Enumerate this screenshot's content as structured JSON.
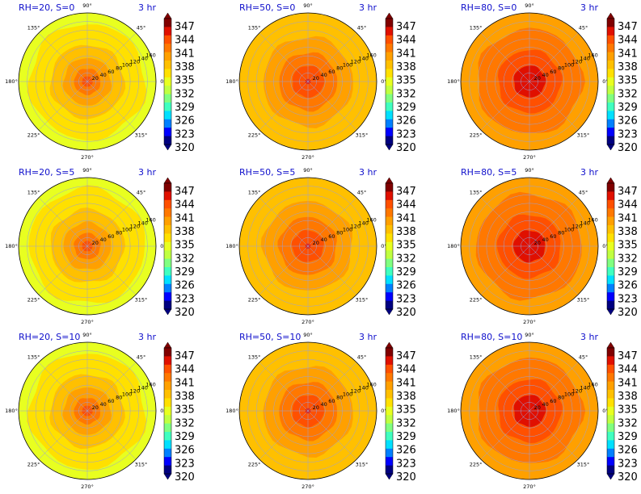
{
  "colors": {
    "title": "#1010cc",
    "grid": "#9aa0d8",
    "ring_palette": [
      "#000080",
      "#0000ff",
      "#0080ff",
      "#00e0ff",
      "#40ffc0",
      "#80ff80",
      "#c0ff40",
      "#e8ff20",
      "#ffe000",
      "#ffc000",
      "#ffa000",
      "#ff7800",
      "#ff5000",
      "#e01000",
      "#800000"
    ]
  },
  "colorbar": {
    "ticks": [
      "347",
      "344",
      "341",
      "338",
      "335",
      "332",
      "329",
      "326",
      "323",
      "320"
    ],
    "min": 320,
    "max": 348
  },
  "polar_axes": {
    "angle_labels": [
      "0°",
      "45°",
      "90°",
      "135°",
      "180°",
      "225°",
      "270°",
      "315°"
    ],
    "radial_labels": [
      "20",
      "40",
      "60",
      "80",
      "100",
      "120",
      "140",
      "160"
    ]
  },
  "chart_data": [
    {
      "type": "heatmap",
      "title": "RH=20, S=0",
      "subtitle": "3 hr",
      "center_value": 343.5,
      "edge_value": 334.5,
      "r_max": 160
    },
    {
      "type": "heatmap",
      "title": "RH=50, S=0",
      "subtitle": "3 hr",
      "center_value": 345.0,
      "edge_value": 337.5,
      "r_max": 160
    },
    {
      "type": "heatmap",
      "title": "RH=80, S=0",
      "subtitle": "3 hr",
      "center_value": 346.5,
      "edge_value": 340.0,
      "r_max": 160
    },
    {
      "type": "heatmap",
      "title": "RH=20, S=5",
      "subtitle": "3 hr",
      "center_value": 343.5,
      "edge_value": 334.5,
      "r_max": 160
    },
    {
      "type": "heatmap",
      "title": "RH=50, S=5",
      "subtitle": "3 hr",
      "center_value": 345.0,
      "edge_value": 337.5,
      "r_max": 160
    },
    {
      "type": "heatmap",
      "title": "RH=80, S=5",
      "subtitle": "3 hr",
      "center_value": 346.5,
      "edge_value": 340.0,
      "r_max": 160
    },
    {
      "type": "heatmap",
      "title": "RH=20, S=10",
      "subtitle": "3 hr",
      "center_value": 343.5,
      "edge_value": 334.5,
      "r_max": 160
    },
    {
      "type": "heatmap",
      "title": "RH=50, S=10",
      "subtitle": "3 hr",
      "center_value": 345.0,
      "edge_value": 337.5,
      "r_max": 160
    },
    {
      "type": "heatmap",
      "title": "RH=80, S=10",
      "subtitle": "3 hr",
      "center_value": 346.5,
      "edge_value": 340.0,
      "r_max": 160
    }
  ]
}
